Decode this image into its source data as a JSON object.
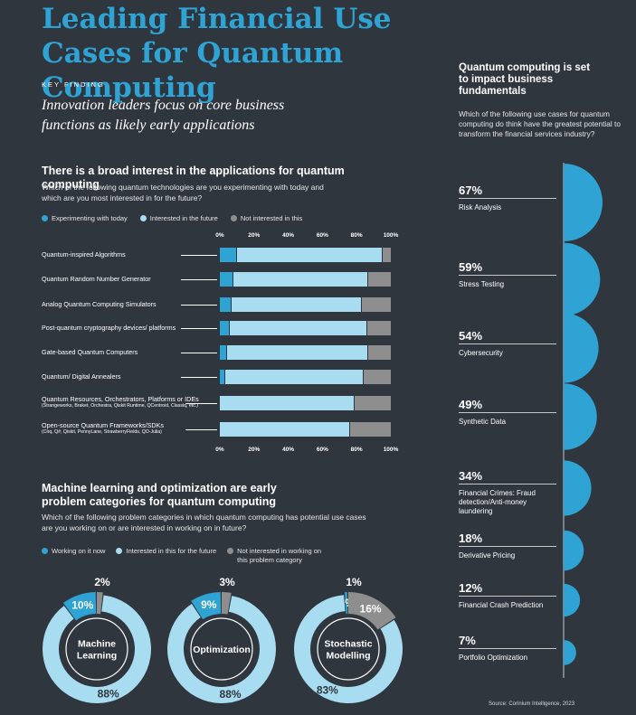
{
  "header": {
    "title": "Leading Financial Use Cases for Quantum Computing",
    "key_finding": "KEY FINDING",
    "intro": "Innovation leaders focus on core business functions as likely early applications"
  },
  "colors": {
    "background": "#2f363e",
    "blue": "#2ea3d4",
    "light_blue": "#a8dcf0",
    "gray": "#8e8e8e"
  },
  "section1": {
    "heading": "There is a broad interest in the applications for quantum computing",
    "question": "Which of the following quantum technologies are you experimenting with today and which are you most interested in for the future?",
    "legend": [
      "Experimenting with today",
      "Interested in the future",
      "Not interested in this"
    ]
  },
  "section2": {
    "heading": "Machine learning and optimization are early problem categories for quantum computing",
    "question": "Which of the following problem categories in which quantum computing has potential use cases are you working on or are interested in working on in future?",
    "legend": [
      "Working on it now",
      "Interested in this for the future",
      "Not interested in working on this problem category"
    ]
  },
  "sidebar": {
    "heading": "Quantum computing is set to impact business fundamentals",
    "question": "Which of the following use cases for quantum computing do think have the greatest potential to transform the financial services industry?"
  },
  "source": "Source: Corinium Intelligence, 2023",
  "chart_data": [
    {
      "type": "bar",
      "orientation": "horizontal-stacked",
      "xlim": [
        0,
        100
      ],
      "ticks": [
        "0%",
        "20%",
        "40%",
        "60%",
        "80%",
        "100%"
      ],
      "categories": [
        {
          "label": "Quantum-inspired Algorithms",
          "sub": ""
        },
        {
          "label": "Quantum Random Number Generator",
          "sub": ""
        },
        {
          "label": "Analog Quantum Computing Simulators",
          "sub": ""
        },
        {
          "label": "Post-quantum cryptography devices/ platforms",
          "sub": ""
        },
        {
          "label": "Gate-based Quantum Computers",
          "sub": ""
        },
        {
          "label": "Quantum/ Digital Annealers",
          "sub": ""
        },
        {
          "label": "Quantum Resources, Orchestrators, Platforms or IDEs",
          "sub": "(Strangeworks, Braket, Orchestra, Qiskit Runtime, QCentroid, Classiq, etc.)"
        },
        {
          "label": "Open-source Quantum Frameworks/SDKs",
          "sub": "(Cirq, Q#, Qiskit, PennyLane, StrawberryFields, QO-Julia)"
        }
      ],
      "series": [
        {
          "name": "Experimenting with today",
          "values": [
            10,
            8,
            7,
            6,
            4,
            3,
            0,
            0
          ]
        },
        {
          "name": "Interested in the future",
          "values": [
            85,
            79,
            76,
            80,
            83,
            81,
            79,
            76
          ]
        },
        {
          "name": "Not interested in this",
          "values": [
            5,
            13,
            17,
            14,
            13,
            16,
            21,
            24
          ]
        }
      ]
    },
    {
      "type": "pie",
      "style": "donut",
      "charts": [
        {
          "name": "Machine Learning",
          "values": [
            10,
            88,
            2
          ],
          "labels": [
            "10%",
            "88%",
            "2%"
          ]
        },
        {
          "name": "Optimization",
          "values": [
            9,
            88,
            3
          ],
          "labels": [
            "9%",
            "88%",
            "3%"
          ]
        },
        {
          "name": "Stochastic Modelling",
          "values": [
            1,
            83,
            16
          ],
          "labels": [
            "1%",
            "83%",
            "16%"
          ]
        }
      ],
      "series_names": [
        "Working on it now",
        "Interested in this for the future",
        "Not interested in working on this problem category"
      ]
    },
    {
      "type": "pie",
      "style": "half-circle",
      "items": [
        {
          "pct": "67%",
          "value": 67,
          "label": "Risk Analysis"
        },
        {
          "pct": "59%",
          "value": 59,
          "label": "Stress Testing"
        },
        {
          "pct": "54%",
          "value": 54,
          "label": "Cybersecurity"
        },
        {
          "pct": "49%",
          "value": 49,
          "label": "Synthetic Data"
        },
        {
          "pct": "34%",
          "value": 34,
          "label": "Financial Crimes: Fraud detection/Anti-money laundering"
        },
        {
          "pct": "18%",
          "value": 18,
          "label": "Derivative Pricing"
        },
        {
          "pct": "12%",
          "value": 12,
          "label": "Financial Crash Prediction"
        },
        {
          "pct": "7%",
          "value": 7,
          "label": "Portfolio Optimization"
        }
      ]
    }
  ]
}
